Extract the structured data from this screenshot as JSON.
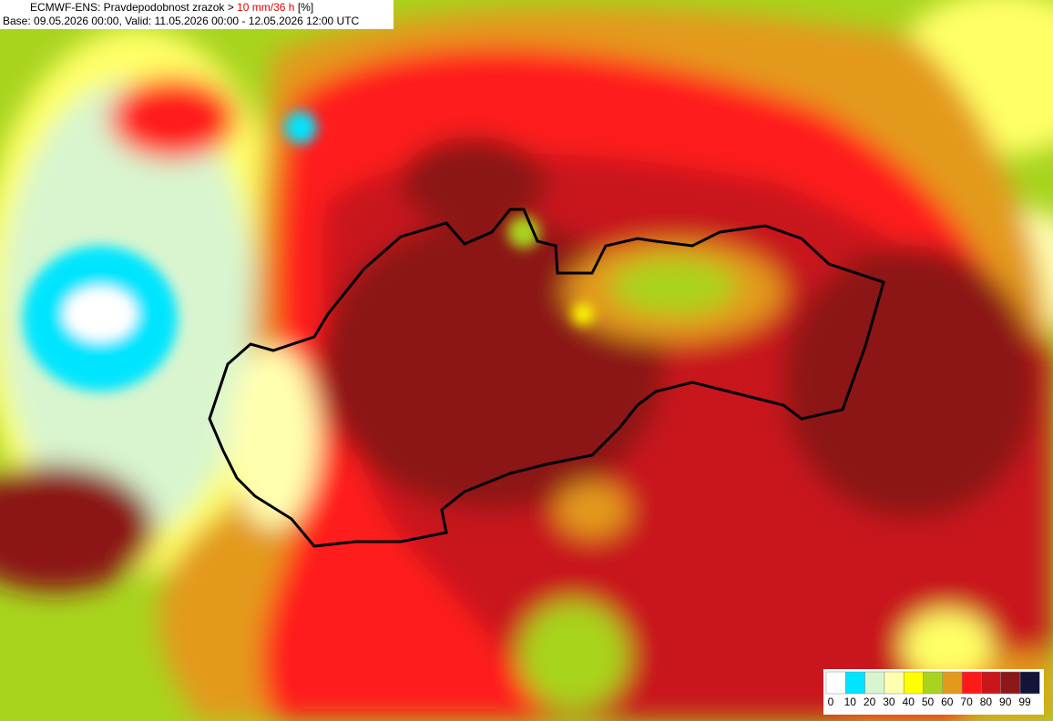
{
  "header": {
    "title_prefix": "ECMWF-ENS: Pravdepodobnost zrazok >",
    "title_threshold": "10 mm/36 h",
    "title_unit": "[%]",
    "base_line": "Base: 09.05.2026 00:00, Valid: 11.05.2026 00:00 - 12.05.2026 12:00 UTC"
  },
  "legend": {
    "labels": [
      0,
      10,
      20,
      30,
      40,
      50,
      60,
      70,
      80,
      90,
      99
    ],
    "colors": [
      "#ffffff",
      "#00e5ff",
      "#d8f5cf",
      "#ffffb0",
      "#ffff00",
      "#a8d41e",
      "#e39a1a",
      "#ff1a1a",
      "#c8161a",
      "#8c1818",
      "#141438"
    ]
  }
}
